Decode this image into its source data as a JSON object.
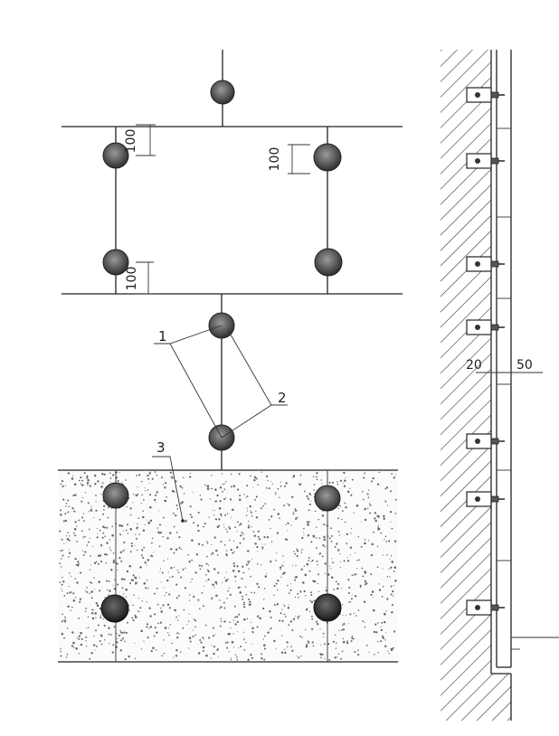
{
  "labels": {
    "callout_1": "1",
    "callout_2": "2",
    "callout_3": "3"
  },
  "dimensions": {
    "gap_top_right": "100",
    "gap_top_left": "100",
    "gap_mid_left": "100",
    "wall_offset_left": "20",
    "wall_offset_right": "50"
  },
  "colors": {
    "line": "#222222",
    "fastener": "#4a4a4a",
    "stone_dots": "#555555"
  }
}
